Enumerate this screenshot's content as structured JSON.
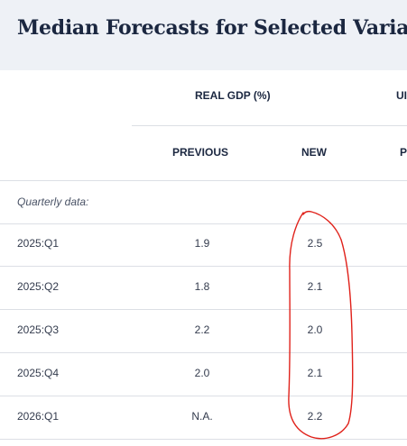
{
  "title": "Median Forecasts for Selected Variables",
  "table": {
    "group_headers": [
      "REAL GDP (%)",
      "UI"
    ],
    "sub_headers": [
      "PREVIOUS",
      "NEW",
      "P"
    ],
    "section_label": "Quarterly data:",
    "rows": [
      {
        "period": "2025:Q1",
        "previous": "1.9",
        "new": "2.5"
      },
      {
        "period": "2025:Q2",
        "previous": "1.8",
        "new": "2.1"
      },
      {
        "period": "2025:Q3",
        "previous": "2.2",
        "new": "2.0"
      },
      {
        "period": "2025:Q4",
        "previous": "2.0",
        "new": "2.1"
      },
      {
        "period": "2026:Q1",
        "previous": "N.A.",
        "new": "2.2"
      }
    ]
  },
  "annotation_color": "#e0221b"
}
